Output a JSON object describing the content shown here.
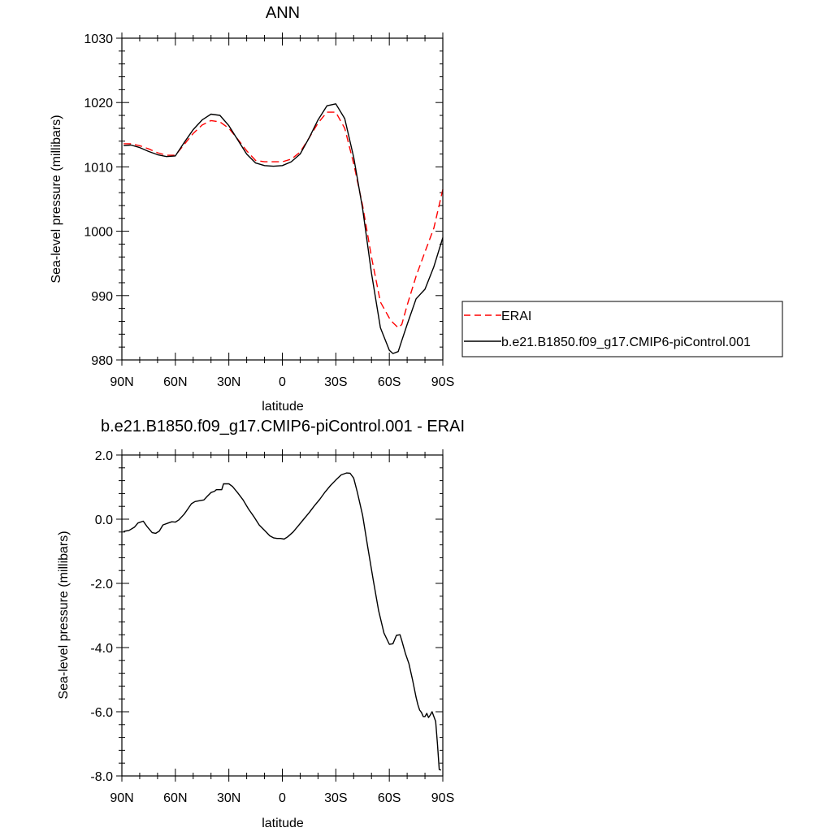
{
  "chart_data": [
    {
      "type": "line",
      "title": "ANN",
      "xlabel": "latitude",
      "ylabel": "Sea-level pressure (millibars)",
      "xlim": [
        -90,
        90
      ],
      "ylim": [
        980,
        1030
      ],
      "xticks": [
        -90,
        -60,
        -30,
        0,
        30,
        60,
        90
      ],
      "xtick_labels": [
        "90N",
        "60N",
        "30N",
        "0",
        "30S",
        "60S",
        "90S"
      ],
      "yticks": [
        980,
        990,
        1000,
        1010,
        1020,
        1030
      ],
      "ytick_labels": [
        "980",
        "990",
        "1000",
        "1010",
        "1020",
        "1030"
      ],
      "grid": false,
      "legend_position": "right",
      "series": [
        {
          "name": "ERAI",
          "color": "#ff0000",
          "dash": "dashed",
          "x": [
            -89,
            -85,
            -80,
            -75,
            -70,
            -65,
            -60,
            -55,
            -50,
            -45,
            -40,
            -35,
            -30,
            -25,
            -20,
            -15,
            -10,
            -5,
            0,
            5,
            10,
            15,
            20,
            25,
            30,
            35,
            40,
            45,
            50,
            55,
            60,
            62,
            65,
            67,
            70,
            75,
            80,
            85,
            90
          ],
          "y": [
            1013.6,
            1013.6,
            1013.3,
            1012.8,
            1012.2,
            1011.8,
            1011.8,
            1013.5,
            1015.2,
            1016.5,
            1017.2,
            1017.0,
            1016.0,
            1014.3,
            1012.5,
            1011.0,
            1010.8,
            1010.8,
            1010.8,
            1011.2,
            1012.3,
            1014.5,
            1016.8,
            1018.5,
            1018.5,
            1016.0,
            1010.5,
            1004.0,
            996.0,
            989.0,
            986.5,
            985.8,
            985.0,
            985.5,
            988.5,
            993.0,
            996.8,
            1000.5,
            1006.5
          ]
        },
        {
          "name": "b.e21.B1850.f09_g17.CMIP6-piControl.001",
          "color": "#000000",
          "dash": "solid",
          "x": [
            -89,
            -85,
            -80,
            -75,
            -70,
            -65,
            -60,
            -55,
            -50,
            -45,
            -40,
            -35,
            -30,
            -25,
            -20,
            -15,
            -10,
            -5,
            0,
            5,
            10,
            15,
            20,
            25,
            30,
            35,
            40,
            45,
            50,
            55,
            60,
            62,
            65,
            67,
            70,
            75,
            80,
            85,
            90
          ],
          "y": [
            1013.3,
            1013.4,
            1013.0,
            1012.4,
            1011.9,
            1011.6,
            1011.7,
            1013.8,
            1015.8,
            1017.3,
            1018.2,
            1018.0,
            1016.4,
            1014.2,
            1012.0,
            1010.6,
            1010.2,
            1010.1,
            1010.2,
            1010.8,
            1012.0,
            1014.5,
            1017.3,
            1019.5,
            1019.8,
            1017.5,
            1011.5,
            1003.5,
            993.5,
            985.0,
            981.5,
            981.0,
            981.3,
            983.0,
            985.5,
            989.5,
            991.0,
            994.5,
            999.0
          ]
        }
      ]
    },
    {
      "type": "line",
      "title": "b.e21.B1850.f09_g17.CMIP6-piControl.001 - ERAI",
      "xlabel": "latitude",
      "ylabel": "Sea-level pressure (millibars)",
      "xlim": [
        -90,
        90
      ],
      "ylim": [
        -8,
        2
      ],
      "xticks": [
        -90,
        -60,
        -30,
        0,
        30,
        60,
        90
      ],
      "xtick_labels": [
        "90N",
        "60N",
        "30N",
        "0",
        "30S",
        "60S",
        "90S"
      ],
      "yticks": [
        -8,
        -6,
        -4,
        -2,
        0,
        2
      ],
      "ytick_labels": [
        "-8.0",
        "-6.0",
        "-4.0",
        "-2.0",
        "0.0",
        "2.0"
      ],
      "grid": false,
      "series": [
        {
          "color": "#000000",
          "dash": "solid",
          "x": [
            -89,
            -86,
            -83,
            -81,
            -78,
            -76,
            -73,
            -71,
            -69,
            -67,
            -64,
            -62,
            -60,
            -58,
            -55,
            -53,
            -51,
            -49,
            -46,
            -44,
            -42,
            -40,
            -38,
            -37,
            -34,
            -33,
            -30,
            -28,
            -25,
            -22,
            -19,
            -16,
            -13,
            -10,
            -7,
            -5,
            -3,
            -1,
            1,
            3,
            6,
            9,
            12,
            15,
            18,
            21,
            24,
            27,
            30,
            33,
            36,
            38,
            40,
            42,
            45,
            48,
            51,
            54,
            57,
            60,
            62,
            64,
            66,
            67,
            69,
            71,
            73,
            75,
            76,
            77,
            78,
            79,
            80,
            81,
            82,
            83,
            84,
            86,
            87,
            88,
            89
          ],
          "y": [
            -0.38,
            -0.35,
            -0.25,
            -0.12,
            -0.06,
            -0.22,
            -0.42,
            -0.44,
            -0.37,
            -0.18,
            -0.12,
            -0.08,
            -0.09,
            -0.02,
            0.16,
            0.32,
            0.48,
            0.55,
            0.58,
            0.6,
            0.72,
            0.83,
            0.87,
            0.92,
            0.92,
            1.1,
            1.1,
            1.02,
            0.82,
            0.6,
            0.32,
            0.08,
            -0.18,
            -0.35,
            -0.52,
            -0.58,
            -0.6,
            -0.6,
            -0.62,
            -0.55,
            -0.4,
            -0.2,
            0.0,
            0.2,
            0.42,
            0.62,
            0.85,
            1.05,
            1.22,
            1.38,
            1.44,
            1.43,
            1.28,
            0.85,
            0.12,
            -0.9,
            -1.9,
            -2.85,
            -3.55,
            -3.9,
            -3.88,
            -3.62,
            -3.6,
            -3.78,
            -4.18,
            -4.5,
            -5.0,
            -5.55,
            -5.78,
            -5.95,
            -6.02,
            -6.15,
            -6.15,
            -6.05,
            -6.18,
            -6.1,
            -6.0,
            -6.3,
            -7.0,
            -7.8,
            -7.82
          ]
        }
      ]
    }
  ],
  "legend": {
    "items": [
      {
        "label": "ERAI"
      },
      {
        "label": "b.e21.B1850.f09_g17.CMIP6-piControl.001"
      }
    ]
  }
}
